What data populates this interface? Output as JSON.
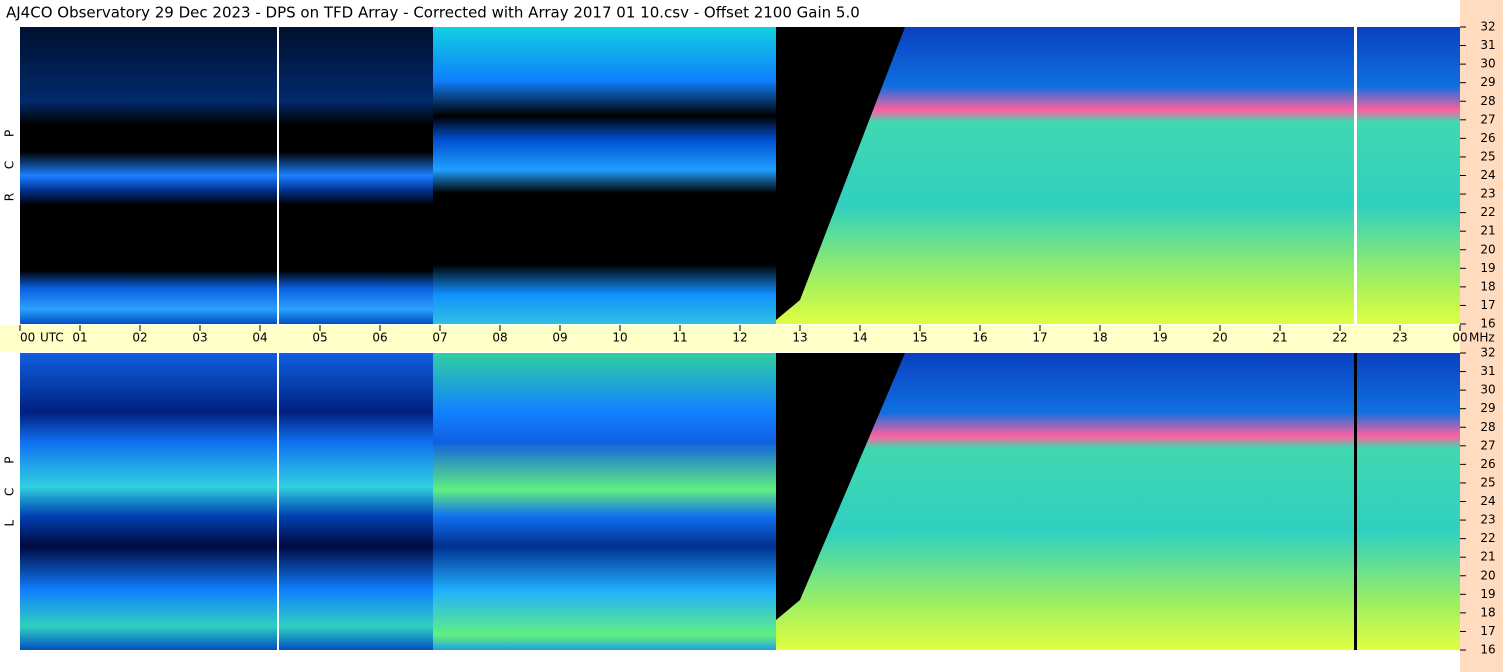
{
  "chart_data": {
    "type": "spectrogram",
    "title": "AJ4CO Observatory  29 Dec 2023  -  DPS on TFD Array  -  Corrected with Array 2017 01 10.csv  -  Offset 2100  Gain 5.0",
    "panels": [
      "R C P",
      "L C P"
    ],
    "xlabel": "UTC",
    "ylabel": "MHz",
    "xlim": [
      0,
      24
    ],
    "xticks": [
      {
        "value": 0,
        "label": "00"
      },
      {
        "value": 1,
        "label": "01"
      },
      {
        "value": 2,
        "label": "02"
      },
      {
        "value": 3,
        "label": "03"
      },
      {
        "value": 4,
        "label": "04"
      },
      {
        "value": 5,
        "label": "05"
      },
      {
        "value": 6,
        "label": "06"
      },
      {
        "value": 7,
        "label": "07"
      },
      {
        "value": 8,
        "label": "08"
      },
      {
        "value": 9,
        "label": "09"
      },
      10,
      11,
      12,
      13,
      14,
      15,
      16,
      17,
      18,
      19,
      20,
      21,
      22,
      23,
      {
        "value": 24,
        "label": "00"
      }
    ],
    "ylim": [
      16,
      32
    ],
    "yticks": [
      16,
      17,
      18,
      19,
      20,
      21,
      22,
      23,
      24,
      25,
      26,
      27,
      28,
      29,
      30,
      31,
      32
    ]
  }
}
